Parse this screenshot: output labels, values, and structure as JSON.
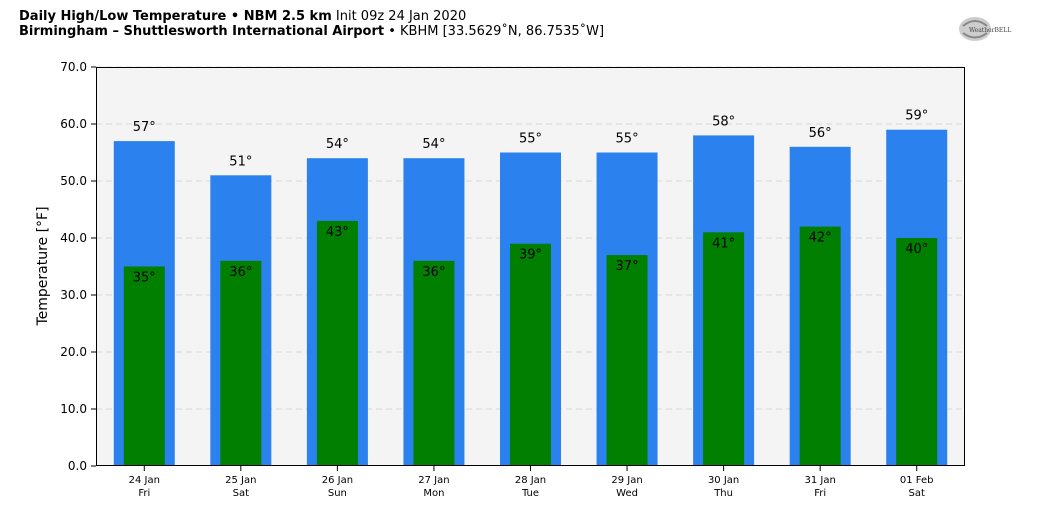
{
  "header": {
    "line1_bold": "Daily High/Low Temperature • NBM 2.5 km",
    "line1_rest": "Init 09z 24 Jan 2020",
    "line2_bold": "Birmingham – Shuttlesworth International Airport",
    "line2_rest": "• KBHM [33.5629˚N, 86.7535˚W]"
  },
  "logo": {
    "text": "WeatherBELL",
    "icon": "weatherbell-logo"
  },
  "chart_data": {
    "type": "bar",
    "ylabel": "Temperature [°F]",
    "ylim": [
      0,
      70
    ],
    "yticks": [
      "0.0",
      "10.0",
      "20.0",
      "30.0",
      "40.0",
      "50.0",
      "60.0",
      "70.0"
    ],
    "grid": true,
    "categories": [
      [
        "24 Jan",
        "Fri"
      ],
      [
        "25 Jan",
        "Sat"
      ],
      [
        "26 Jan",
        "Sun"
      ],
      [
        "27 Jan",
        "Mon"
      ],
      [
        "28 Jan",
        "Tue"
      ],
      [
        "29 Jan",
        "Wed"
      ],
      [
        "30 Jan",
        "Thu"
      ],
      [
        "31 Jan",
        "Fri"
      ],
      [
        "01 Feb",
        "Sat"
      ]
    ],
    "series": [
      {
        "values": [
          57,
          51,
          54,
          54,
          55,
          55,
          58,
          56,
          59
        ],
        "color": "#2b82ee",
        "labels": [
          "57°",
          "51°",
          "54°",
          "54°",
          "55°",
          "55°",
          "58°",
          "56°",
          "59°"
        ]
      },
      {
        "values": [
          35,
          36,
          43,
          36,
          39,
          37,
          41,
          42,
          40
        ],
        "color": "#007f00",
        "labels": [
          "35°",
          "36°",
          "43°",
          "36°",
          "39°",
          "37°",
          "41°",
          "42°",
          "40°"
        ]
      }
    ],
    "colors": {
      "background": "#f4f4f4",
      "grid": "#d8d8d8"
    }
  }
}
